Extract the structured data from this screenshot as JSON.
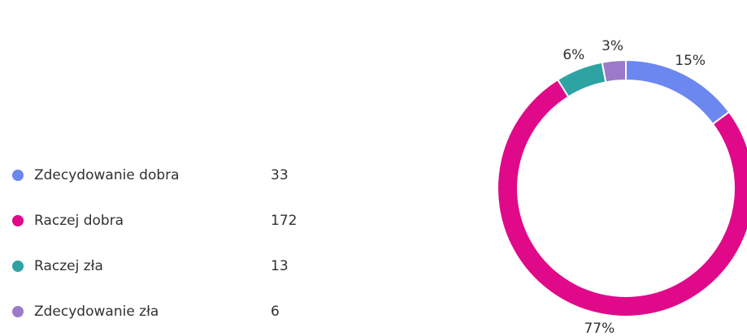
{
  "chart_data": {
    "type": "donut",
    "categories": [
      "Zdecydowanie dobra",
      "Raczej dobra",
      "Raczej zła",
      "Zdecydowanie zła"
    ],
    "counts": [
      33,
      172,
      13,
      6
    ],
    "values": [
      15,
      77,
      6,
      3
    ],
    "value_labels": [
      "15%",
      "77%",
      "6%",
      "3%"
    ],
    "colors": [
      "#6b87f0",
      "#e0098a",
      "#2ea3a3",
      "#9b7ac9"
    ],
    "legend": "left"
  }
}
